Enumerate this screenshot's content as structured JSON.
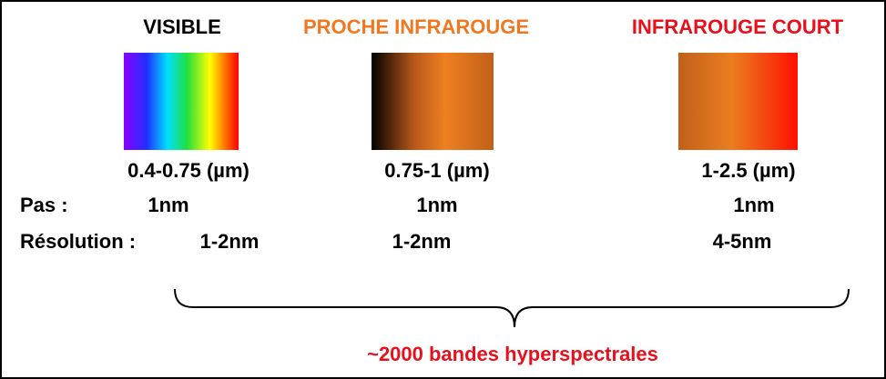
{
  "columns": [
    {
      "title": "VISIBLE",
      "range": "0.4-0.75 (µm)",
      "step": "1nm",
      "resolution": "1-2nm"
    },
    {
      "title": "PROCHE INFRAROUGE",
      "range": "0.75-1 (µm)",
      "step": "1nm",
      "resolution": "1-2nm"
    },
    {
      "title": "INFRAROUGE COURT",
      "range": "1-2.5 (µm)",
      "step": "1nm",
      "resolution": "4-5nm"
    }
  ],
  "row_labels": {
    "step": "Pas :",
    "resolution": "Résolution :"
  },
  "footer": "~2000 bandes hyperspectrales"
}
